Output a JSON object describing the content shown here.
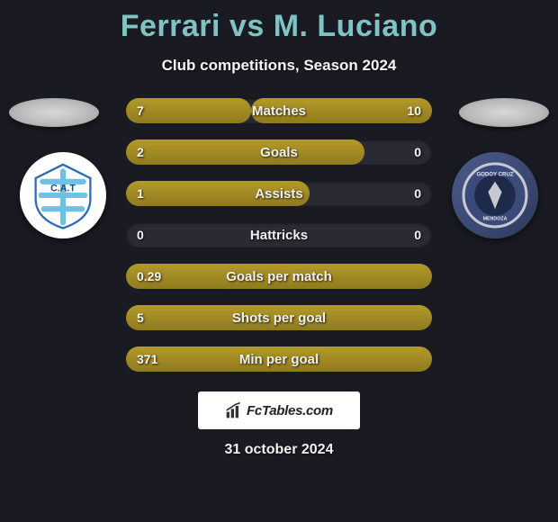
{
  "title": {
    "player1": "Ferrari",
    "vs": "vs",
    "player2": "M. Luciano"
  },
  "subtitle": "Club competitions, Season 2024",
  "stats": [
    {
      "label": "Matches",
      "left_val": "7",
      "right_val": "10",
      "left_pct": 41,
      "right_pct": 59,
      "show_right": true
    },
    {
      "label": "Goals",
      "left_val": "2",
      "right_val": "0",
      "left_pct": 78,
      "right_pct": 0,
      "show_right": false
    },
    {
      "label": "Assists",
      "left_val": "1",
      "right_val": "0",
      "left_pct": 60,
      "right_pct": 0,
      "show_right": false
    },
    {
      "label": "Hattricks",
      "left_val": "0",
      "right_val": "0",
      "left_pct": 0,
      "right_pct": 0,
      "show_right": false
    },
    {
      "label": "Goals per match",
      "left_val": "0.29",
      "right_val": "",
      "left_pct": 100,
      "right_pct": 0,
      "show_right": false
    },
    {
      "label": "Shots per goal",
      "left_val": "5",
      "right_val": "",
      "left_pct": 100,
      "right_pct": 0,
      "show_right": false
    },
    {
      "label": "Min per goal",
      "left_val": "371",
      "right_val": "",
      "left_pct": 100,
      "right_pct": 0,
      "show_right": false
    }
  ],
  "colors": {
    "bar_fill": "#a38c26",
    "bar_track": "#2a2a33",
    "bg": "#1a1a22",
    "accent_text": "#7fc3c3"
  },
  "footer": {
    "brand": "FcTables.com",
    "date": "31 october 2024"
  },
  "badges": {
    "left_name": "club-badge-atletico-tucuman",
    "right_name": "club-badge-godoy-cruz"
  }
}
